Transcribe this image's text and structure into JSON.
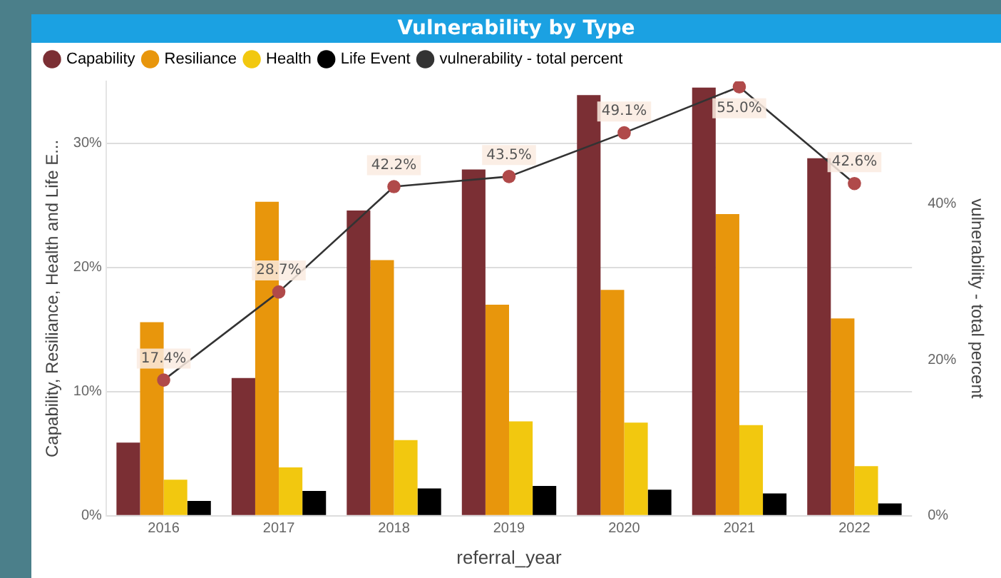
{
  "chart_data": {
    "type": "bar",
    "title": "Vulnerability by Type",
    "xlabel": "referral_year",
    "ylabel": "Capability, Resiliance, Health and Life E...",
    "y2label": "vulnerability - total percent",
    "categories": [
      "2016",
      "2017",
      "2018",
      "2019",
      "2020",
      "2021",
      "2022"
    ],
    "series": [
      {
        "name": "Capability",
        "color": "#7b2f34",
        "values": [
          5.9,
          11.1,
          24.6,
          27.9,
          33.9,
          34.5,
          28.8
        ]
      },
      {
        "name": "Resiliance",
        "color": "#e8960c",
        "values": [
          15.6,
          25.3,
          20.6,
          17.0,
          18.2,
          24.3,
          15.9
        ]
      },
      {
        "name": "Health",
        "color": "#f2c80f",
        "values": [
          2.9,
          3.9,
          6.1,
          7.6,
          7.5,
          7.3,
          4.0
        ]
      },
      {
        "name": "Life Event",
        "color": "#000000",
        "values": [
          1.2,
          2.0,
          2.2,
          2.4,
          2.1,
          1.8,
          1.0
        ]
      },
      {
        "name": "vulnerability - total percent",
        "type": "line",
        "axis": "y2",
        "color": "#b04a4a",
        "marker": "circle",
        "values": [
          17.4,
          28.7,
          42.2,
          43.5,
          49.1,
          55.0,
          42.6
        ],
        "value_labels": [
          "17.4%",
          "28.7%",
          "42.2%",
          "43.5%",
          "49.1%",
          "55.0%",
          "42.6%"
        ]
      }
    ],
    "ylim": [
      0,
      35
    ],
    "yticks": [
      {
        "value": 0,
        "label": "0%"
      },
      {
        "value": 10,
        "label": "10%"
      },
      {
        "value": 20,
        "label": "20%"
      },
      {
        "value": 30,
        "label": "30%"
      }
    ],
    "y2lim": [
      0,
      55.7
    ],
    "y2ticks": [
      {
        "value": 0,
        "label": "0%"
      },
      {
        "value": 20,
        "label": "20%"
      },
      {
        "value": 40,
        "label": "40%"
      }
    ],
    "grid": "y",
    "legend": "top left"
  }
}
